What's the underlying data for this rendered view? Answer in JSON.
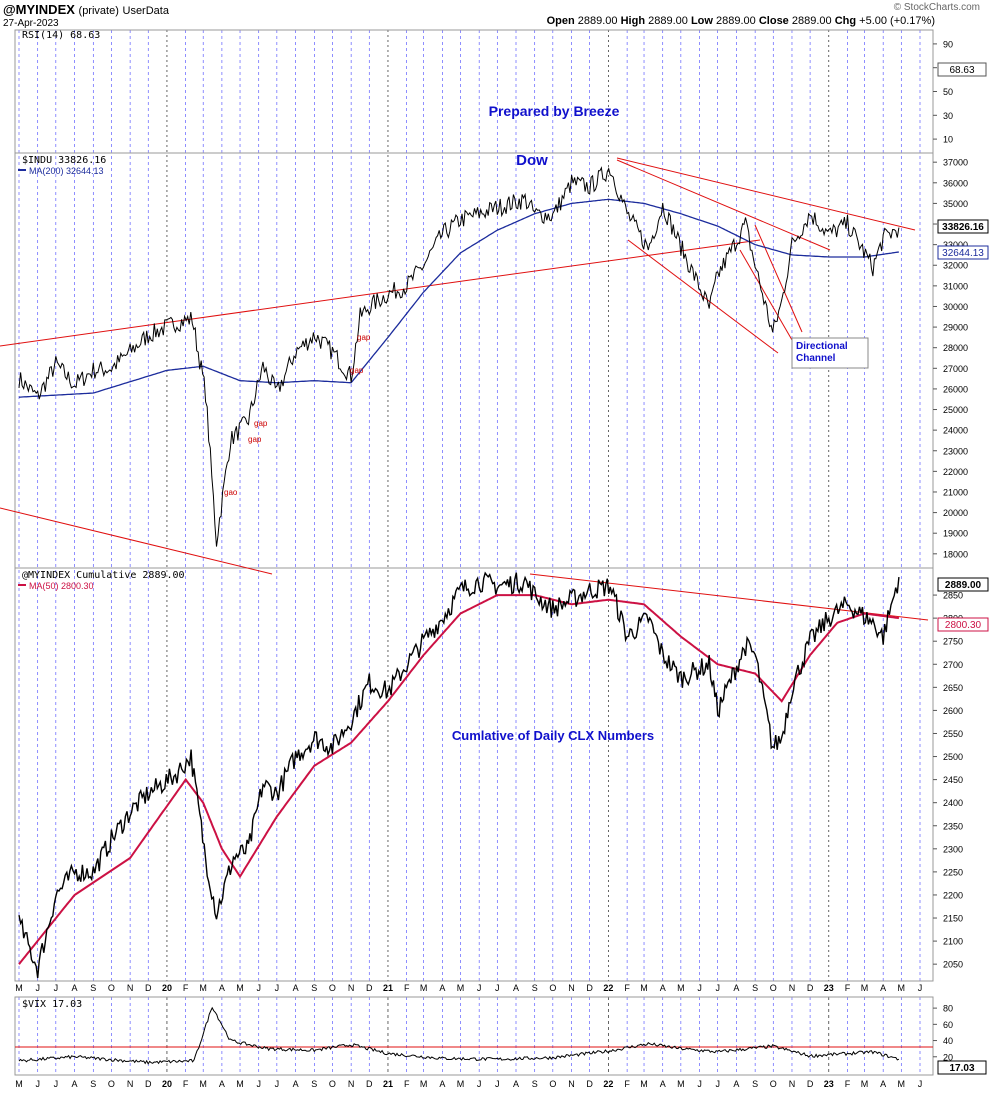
{
  "header": {
    "symbol": "@MYINDEX",
    "privacy": "(private)",
    "source": "UserData",
    "date": "27-Apr-2023",
    "quote": "Open 2889.00  High 2889.00  Low 2889.00  Close 2889.00  Chg +5.00 (+0.17%)",
    "open_label": "Open",
    "open_value": "2889.00",
    "high_label": "High",
    "high_value": "2889.00",
    "low_label": "Low",
    "low_value": "2889.00",
    "close_label": "Close",
    "close_value": "2889.00",
    "chg_label": "Chg",
    "chg_value": "+5.00 (+0.17%)",
    "watermark": "© StockCharts.com"
  },
  "colors": {
    "price": "#000000",
    "ma200": "#1c2c9c",
    "ma50": "#cc1144",
    "trendline": "#e01010",
    "annotation_blue": "#1010cc",
    "gap_label": "#cc0000",
    "vgrid": "#4444ff"
  },
  "chart_data": [
    {
      "panel": "rsi",
      "type": "line",
      "legend": "RSI(14) 68.63",
      "last_value_label": "68.63",
      "yticks": [
        "90",
        "70",
        "50",
        "30",
        "10"
      ],
      "ylim": [
        0,
        100
      ],
      "annotation": "Prepared by Breeze",
      "series": []
    },
    {
      "panel": "price",
      "type": "line",
      "legend": "$INDU 33826.16",
      "ma_legend": "MA(200) 32644.13",
      "last_value_label": "33826.16",
      "ma_last_value_label": "32644.13",
      "title": "Dow",
      "yticks": [
        "37000",
        "36000",
        "35000",
        "34000",
        "33000",
        "32000",
        "31000",
        "30000",
        "29000",
        "28000",
        "27000",
        "26000",
        "25000",
        "24000",
        "23000",
        "22000",
        "21000",
        "20000",
        "19000",
        "18000"
      ],
      "ylim": [
        17700,
        37300
      ],
      "annotations": [
        "gap",
        "gap",
        "gap",
        "gap",
        "gao",
        "Directional Channel"
      ],
      "series": [
        {
          "x": [
            "2019-05-01",
            "2019-06-01",
            "2019-07-01",
            "2019-08-01",
            "2019-09-01",
            "2019-10-01",
            "2019-11-01",
            "2019-12-01",
            "2020-01-15",
            "2020-02-12",
            "2020-03-05",
            "2020-03-23",
            "2020-04-15",
            "2020-05-15",
            "2020-06-08",
            "2020-07-01",
            "2020-08-01",
            "2020-09-02",
            "2020-10-01",
            "2020-11-01",
            "2020-11-16",
            "2020-12-01",
            "2021-01-01",
            "2021-02-01",
            "2021-03-01",
            "2021-04-01",
            "2021-05-01",
            "2021-06-01",
            "2021-07-01",
            "2021-08-16",
            "2021-09-01",
            "2021-10-01",
            "2021-11-01",
            "2021-12-01",
            "2022-01-04",
            "2022-02-01",
            "2022-03-08",
            "2022-04-01",
            "2022-05-01",
            "2022-06-17",
            "2022-07-01",
            "2022-08-16",
            "2022-09-01",
            "2022-09-30",
            "2022-10-15",
            "2022-11-01",
            "2022-12-01",
            "2023-01-01",
            "2023-02-01",
            "2023-03-15",
            "2023-04-01",
            "2023-04-27"
          ],
          "values": [
            26500,
            25600,
            27200,
            26200,
            26900,
            27000,
            27800,
            28600,
            29200,
            29400,
            25800,
            18600,
            23500,
            24500,
            27100,
            25800,
            27800,
            28600,
            27800,
            26600,
            29500,
            30000,
            30600,
            31000,
            32000,
            33500,
            34200,
            34500,
            34800,
            35200,
            34500,
            34400,
            36000,
            35800,
            36700,
            34500,
            32800,
            34900,
            32900,
            29900,
            31500,
            34000,
            32000,
            28700,
            30200,
            33000,
            34500,
            33500,
            34000,
            31900,
            33300,
            33826
          ]
        },
        {
          "name": "MA(200)",
          "x": [
            "2019-05-01",
            "2019-09-01",
            "2020-01-01",
            "2020-03-01",
            "2020-05-01",
            "2020-07-01",
            "2020-09-01",
            "2020-11-01",
            "2021-01-01",
            "2021-03-01",
            "2021-05-01",
            "2021-07-01",
            "2021-09-01",
            "2021-11-01",
            "2022-01-01",
            "2022-03-01",
            "2022-05-01",
            "2022-07-01",
            "2022-09-01",
            "2022-11-01",
            "2023-01-01",
            "2023-03-01",
            "2023-04-27"
          ],
          "values": [
            25600,
            25800,
            26900,
            27100,
            26400,
            26300,
            26400,
            26300,
            28500,
            30700,
            32600,
            33700,
            34500,
            35000,
            35200,
            35000,
            34500,
            33900,
            33000,
            32500,
            32400,
            32400,
            32644
          ]
        }
      ]
    },
    {
      "panel": "cumulative",
      "type": "line",
      "legend": "@MYINDEX Cumulative 2889.00",
      "ma_legend": "MA(50) 2800.30",
      "last_value_label": "2889.00",
      "ma_last_value_label": "2800.30",
      "annotation": "Cumlative of Daily CLX Numbers",
      "yticks": [
        "2850",
        "2800",
        "2750",
        "2700",
        "2650",
        "2600",
        "2550",
        "2500",
        "2450",
        "2400",
        "2350",
        "2300",
        "2250",
        "2200",
        "2150",
        "2100",
        "2050"
      ],
      "ylim": [
        2020,
        2900
      ],
      "series": [
        {
          "x": [
            "2019-05-01",
            "2019-06-01",
            "2019-07-01",
            "2019-08-01",
            "2019-09-01",
            "2019-10-01",
            "2019-11-01",
            "2019-12-01",
            "2020-01-15",
            "2020-02-10",
            "2020-03-05",
            "2020-03-23",
            "2020-04-20",
            "2020-05-15",
            "2020-06-08",
            "2020-07-01",
            "2020-08-01",
            "2020-09-02",
            "2020-10-01",
            "2020-11-01",
            "2020-12-01",
            "2021-01-01",
            "2021-02-01",
            "2021-03-01",
            "2021-04-01",
            "2021-05-01",
            "2021-06-01",
            "2021-07-01",
            "2021-08-16",
            "2021-09-01",
            "2021-10-01",
            "2021-11-01",
            "2021-12-01",
            "2022-01-04",
            "2022-02-01",
            "2022-03-08",
            "2022-04-01",
            "2022-05-01",
            "2022-06-17",
            "2022-07-01",
            "2022-08-16",
            "2022-09-01",
            "2022-09-30",
            "2022-10-15",
            "2022-11-01",
            "2022-12-01",
            "2023-01-01",
            "2023-02-01",
            "2023-03-15",
            "2023-04-01",
            "2023-04-27"
          ],
          "values": [
            2140,
            2040,
            2200,
            2250,
            2250,
            2320,
            2380,
            2420,
            2460,
            2500,
            2280,
            2160,
            2280,
            2300,
            2440,
            2420,
            2500,
            2540,
            2520,
            2580,
            2660,
            2640,
            2700,
            2750,
            2800,
            2860,
            2880,
            2870,
            2880,
            2850,
            2820,
            2840,
            2860,
            2870,
            2760,
            2800,
            2720,
            2670,
            2700,
            2600,
            2740,
            2720,
            2520,
            2540,
            2650,
            2750,
            2800,
            2830,
            2790,
            2760,
            2889
          ]
        },
        {
          "name": "MA(50)",
          "x": [
            "2019-05-01",
            "2019-08-01",
            "2019-11-01",
            "2020-02-01",
            "2020-03-01",
            "2020-04-01",
            "2020-05-01",
            "2020-07-01",
            "2020-09-01",
            "2020-11-01",
            "2021-01-01",
            "2021-03-01",
            "2021-05-01",
            "2021-07-01",
            "2021-09-01",
            "2021-11-01",
            "2022-01-01",
            "2022-03-01",
            "2022-05-01",
            "2022-07-01",
            "2022-09-01",
            "2022-10-15",
            "2022-12-01",
            "2023-01-15",
            "2023-03-01",
            "2023-04-27"
          ],
          "values": [
            2050,
            2200,
            2280,
            2450,
            2400,
            2300,
            2240,
            2370,
            2480,
            2530,
            2620,
            2720,
            2810,
            2850,
            2850,
            2830,
            2840,
            2830,
            2760,
            2700,
            2680,
            2620,
            2720,
            2790,
            2810,
            2800
          ]
        }
      ]
    },
    {
      "panel": "vix",
      "type": "line",
      "legend": "$VIX 17.03",
      "last_value_label": "17.03",
      "yticks": [
        "80",
        "60",
        "40",
        "20"
      ],
      "ylim": [
        0,
        90
      ],
      "series": [
        {
          "x": [
            "2019-05-01",
            "2019-08-01",
            "2019-12-01",
            "2020-02-15",
            "2020-03-16",
            "2020-04-15",
            "2020-06-15",
            "2020-09-01",
            "2020-11-01",
            "2021-01-01",
            "2021-04-01",
            "2021-07-01",
            "2021-10-01",
            "2022-01-01",
            "2022-03-08",
            "2022-05-01",
            "2022-07-01",
            "2022-09-30",
            "2022-12-01",
            "2023-03-15",
            "2023-04-27"
          ],
          "values": [
            15,
            20,
            13,
            15,
            82,
            40,
            30,
            28,
            35,
            24,
            18,
            17,
            19,
            27,
            36,
            30,
            26,
            33,
            21,
            26,
            17
          ]
        }
      ]
    }
  ],
  "x_axis": {
    "months": [
      "M",
      "J",
      "J",
      "A",
      "S",
      "O",
      "N",
      "D",
      "20",
      "F",
      "M",
      "A",
      "M",
      "J",
      "J",
      "A",
      "S",
      "O",
      "N",
      "D",
      "21",
      "F",
      "M",
      "A",
      "M",
      "J",
      "J",
      "A",
      "S",
      "O",
      "N",
      "D",
      "22",
      "F",
      "M",
      "A",
      "M",
      "J",
      "J",
      "A",
      "S",
      "O",
      "N",
      "D",
      "23",
      "F",
      "M",
      "A",
      "M",
      "J"
    ]
  }
}
